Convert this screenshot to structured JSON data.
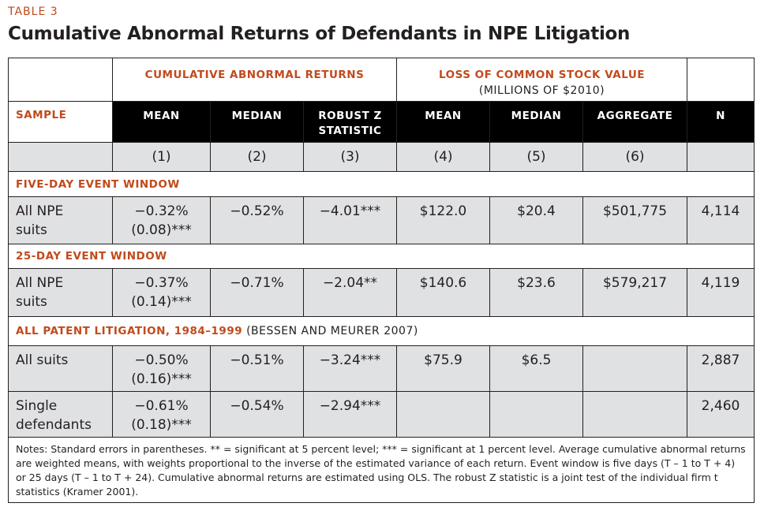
{
  "table_label": "TABLE 3",
  "title": "Cumulative Abnormal Returns of Defendants in NPE Litigation",
  "groups": {
    "car": "CUMULATIVE ABNORMAL RETURNS",
    "loss": "LOSS OF COMMON STOCK VALUE",
    "loss_sub": "(MILLIONS OF $2010)"
  },
  "headers": {
    "sample": "SAMPLE",
    "mean": "MEAN",
    "median": "MEDIAN",
    "robust_1": "ROBUST Z",
    "robust_2": "STATISTIC",
    "mean2": "MEAN",
    "median2": "MEDIAN",
    "aggregate": "AGGREGATE",
    "n": "N"
  },
  "col_numbers": [
    "(1)",
    "(2)",
    "(3)",
    "(4)",
    "(5)",
    "(6)"
  ],
  "sections": [
    {
      "title": "FIVE-DAY EVENT WINDOW",
      "rest": "",
      "rows": [
        {
          "label_1": "All NPE",
          "label_2": "suits",
          "mean_1": "−0.32%",
          "mean_2": "(0.08)***",
          "median": "−0.52%",
          "robust_z": "−4.01***",
          "loss_mean": "$122.0",
          "loss_median": "$20.4",
          "aggregate": "$501,775",
          "n": "4,114"
        }
      ]
    },
    {
      "title": "25-DAY EVENT WINDOW",
      "rest": "",
      "rows": [
        {
          "label_1": "All NPE",
          "label_2": "suits",
          "mean_1": "−0.37%",
          "mean_2": "(0.14)***",
          "median": "−0.71%",
          "robust_z": "−2.04**",
          "loss_mean": "$140.6",
          "loss_median": "$23.6",
          "aggregate": "$579,217",
          "n": "4,119"
        }
      ]
    },
    {
      "title": "ALL PATENT LITIGATION, 1984–1999",
      "rest": " (BESSEN AND MEURER 2007)",
      "rows": [
        {
          "label_1": "All suits",
          "label_2": "",
          "mean_1": "−0.50%",
          "mean_2": "(0.16)***",
          "median": "−0.51%",
          "robust_z": "−3.24***",
          "loss_mean": "$75.9",
          "loss_median": "$6.5",
          "aggregate": "",
          "n": "2,887"
        },
        {
          "label_1": "Single",
          "label_2": "defendants",
          "mean_1": "−0.61%",
          "mean_2": "(0.18)***",
          "median": "−0.54%",
          "robust_z": "−2.94***",
          "loss_mean": "",
          "loss_median": "",
          "aggregate": "",
          "n": "2,460"
        }
      ]
    }
  ],
  "notes": "Notes: Standard errors in parentheses. ** = significant at 5 percent level; *** = significant at 1 percent level. Average cumulative abnormal returns are weighted means, with weights proportional to the inverse of the estimated variance of each return. Event window is five days (T – 1 to T + 4) or 25 days (T – 1 to T + 24). Cumulative abnormal returns are estimated using OLS. The robust Z statistic is a joint test of the individual firm t statistics (Kramer 2001)."
}
